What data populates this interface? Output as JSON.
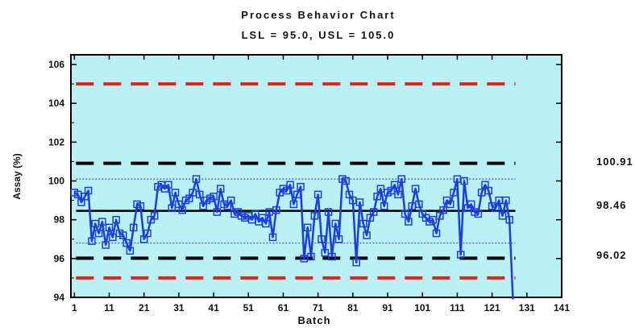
{
  "chart_data": {
    "type": "line",
    "title": "Process Behavior Chart",
    "subtitle": "LSL = 95.0, USL = 105.0",
    "xlabel": "Batch",
    "ylabel": "Assay (%)",
    "xlim": [
      0,
      141
    ],
    "ylim": [
      94,
      106.5
    ],
    "x_ticks": [
      1,
      11,
      21,
      31,
      41,
      51,
      61,
      71,
      81,
      91,
      101,
      111,
      121,
      131,
      141
    ],
    "y_ticks": [
      94,
      96,
      98,
      100,
      102,
      104,
      106
    ],
    "lines": {
      "usl": 105.0,
      "lsl": 95.0,
      "ucl": 100.91,
      "center": 98.46,
      "lcl": 96.02,
      "upper_sigma": 100.1,
      "lower_sigma": 96.8
    },
    "right_labels": [
      "100.91",
      "98.46",
      "96.02"
    ],
    "series": [
      {
        "x": [
          1,
          2,
          3,
          4,
          5,
          6,
          7,
          8,
          9,
          10,
          11,
          12,
          13,
          14,
          15,
          16,
          17,
          18,
          19,
          20,
          21,
          22,
          23,
          24,
          25,
          26,
          27,
          28,
          29,
          30,
          31,
          32,
          33,
          34,
          35,
          36,
          37,
          38,
          39,
          40,
          41,
          42,
          43,
          44,
          45,
          46,
          47,
          48,
          49,
          50,
          51,
          52,
          53,
          54,
          55,
          56,
          57,
          58,
          59,
          60,
          61,
          62,
          63,
          64,
          65,
          66,
          67,
          68,
          69,
          70,
          71,
          72,
          73,
          74,
          75,
          76,
          77,
          78,
          79,
          80,
          81,
          82,
          83,
          84,
          85,
          86,
          87,
          88,
          89,
          90,
          91,
          92,
          93,
          94,
          95,
          96,
          97,
          98,
          99,
          100,
          101,
          102,
          103,
          104,
          105,
          106,
          107,
          108,
          109,
          110,
          111,
          112,
          113,
          114,
          115,
          116,
          117,
          118,
          119,
          120,
          121,
          122,
          123,
          124,
          125,
          126,
          127
        ],
        "values": [
          99.4,
          99.3,
          98.9,
          99.2,
          99.5,
          96.9,
          97.8,
          97.3,
          97.9,
          96.7,
          97.6,
          97.1,
          98.0,
          97.3,
          97.2,
          96.8,
          96.4,
          97.6,
          98.8,
          98.7,
          97.0,
          97.3,
          98.0,
          98.2,
          99.7,
          99.8,
          99.6,
          99.8,
          98.6,
          99.4,
          98.8,
          98.5,
          99.0,
          99.1,
          99.4,
          100.1,
          99.3,
          98.7,
          99.0,
          99.1,
          99.2,
          98.4,
          99.6,
          98.8,
          98.7,
          99.0,
          98.3,
          98.4,
          98.2,
          98.1,
          98.2,
          98.0,
          98.3,
          97.9,
          98.1,
          97.8,
          98.4,
          97.1,
          98.5,
          99.4,
          99.6,
          99.5,
          99.8,
          98.8,
          99.3,
          99.7,
          96.0,
          97.6,
          96.1,
          98.2,
          99.3,
          97.0,
          96.3,
          98.4,
          96.1,
          97.8,
          97.0,
          100.1,
          100.0,
          99.3,
          99.0,
          95.8,
          98.9,
          97.8,
          97.2,
          98.1,
          98.4,
          99.2,
          99.6,
          98.7,
          99.4,
          99.5,
          99.8,
          99.3,
          100.1,
          98.3,
          97.9,
          98.7,
          99.6,
          98.8,
          98.3,
          98.1,
          97.9,
          98.0,
          97.3,
          98.2,
          98.5,
          99.0,
          98.8,
          99.4,
          100.1,
          96.2,
          100.0,
          98.6,
          98.8,
          98.4,
          98.3,
          99.4,
          99.8,
          99.5,
          98.7,
          98.6,
          99.0,
          98.2,
          99.0,
          98.0,
          93.9
        ]
      }
    ],
    "grid": false,
    "legend": "none"
  }
}
